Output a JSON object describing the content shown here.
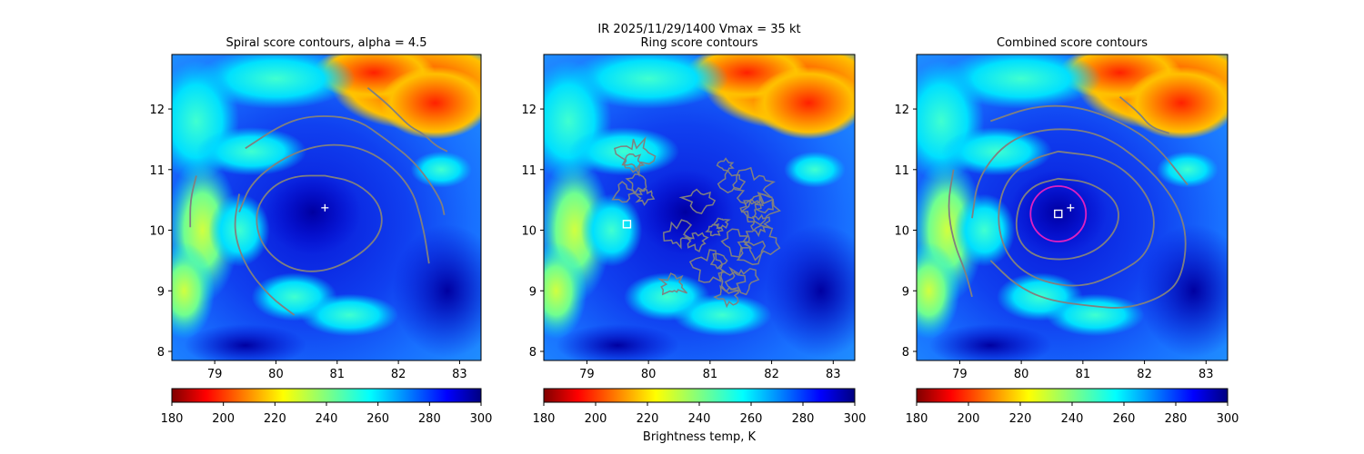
{
  "suptitle": {
    "line1": "IR  2025/11/29/1400    Vmax = 35 kt"
  },
  "colorbar": {
    "label": "Brightness temp, K",
    "range": [
      180,
      300
    ],
    "ticks": [
      "180",
      "200",
      "220",
      "240",
      "260",
      "280",
      "300"
    ],
    "colormap": "jet_r",
    "colors": [
      "#800000",
      "#ff0000",
      "#ff8000",
      "#ffff00",
      "#80ff80",
      "#00ffff",
      "#0080ff",
      "#0000ff",
      "#000080"
    ]
  },
  "chart_data": [
    {
      "type": "heatmap",
      "title": "Spiral score contours, alpha =  4.5",
      "xlim": [
        78.3,
        83.35
      ],
      "ylim": [
        7.85,
        12.9
      ],
      "xticks": [
        "79",
        "80",
        "81",
        "82",
        "83"
      ],
      "yticks": [
        "8",
        "9",
        "10",
        "11",
        "12"
      ],
      "contour_color": "#808080",
      "center_marker": {
        "symbol": "plus",
        "color": "#ffffff",
        "lon": 80.8,
        "lat": 10.37
      }
    },
    {
      "type": "heatmap",
      "title": "Ring score contours",
      "xlim": [
        78.3,
        83.35
      ],
      "ylim": [
        7.85,
        12.9
      ],
      "xticks": [
        "79",
        "80",
        "81",
        "82",
        "83"
      ],
      "yticks": [
        "8",
        "9",
        "10",
        "11",
        "12"
      ],
      "contour_color": "#808080",
      "ring_marker": {
        "symbol": "square",
        "color": "#ffffff",
        "lon": 79.65,
        "lat": 10.1
      }
    },
    {
      "type": "heatmap",
      "title": "Combined score contours",
      "xlim": [
        78.3,
        83.35
      ],
      "ylim": [
        7.85,
        12.9
      ],
      "xticks": [
        "79",
        "80",
        "81",
        "82",
        "83"
      ],
      "yticks": [
        "8",
        "9",
        "10",
        "11",
        "12"
      ],
      "contour_color": "#808080",
      "center_marker": {
        "symbol": "plus",
        "color": "#ffffff",
        "lon": 80.8,
        "lat": 10.37
      },
      "combined_marker": {
        "symbol": "square",
        "color": "#ffffff",
        "lon": 80.6,
        "lat": 10.27
      },
      "circle": {
        "color": "#e020c0",
        "lon": 80.6,
        "lat": 10.27,
        "radius_deg": 0.45
      }
    }
  ]
}
